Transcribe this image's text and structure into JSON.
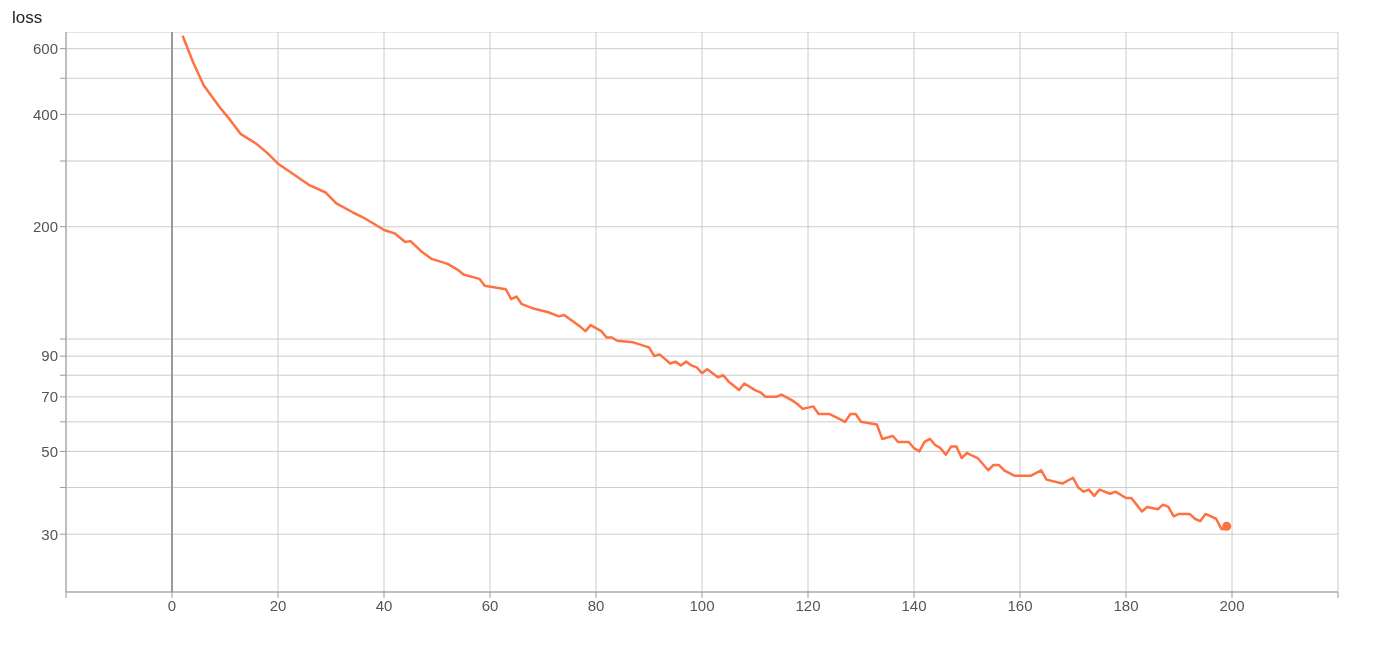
{
  "chart_data": {
    "type": "line",
    "title": "loss",
    "log": "y",
    "grid": true,
    "legend": false,
    "marker": "none",
    "line_style": "solid",
    "xlim": [
      -20,
      220
    ],
    "xticks": [
      {
        "value": -20,
        "label": null
      },
      0,
      20,
      40,
      60,
      80,
      100,
      120,
      140,
      160,
      180,
      200,
      {
        "value": 220,
        "label": null
      }
    ],
    "ylim": [
      21,
      665
    ],
    "yticks": [
      30,
      {
        "value": 40,
        "label": null
      },
      50,
      {
        "value": 60,
        "label": null
      },
      70,
      {
        "value": 80,
        "label": null
      },
      90,
      {
        "value": 100,
        "label": null
      },
      200,
      {
        "value": 300,
        "label": null
      },
      400,
      {
        "value": 500,
        "label": null
      },
      600
    ],
    "ref_lines": [
      {
        "axis": "x",
        "value": 0,
        "color": "#999999"
      }
    ],
    "series": [
      {
        "color": "#ff7043",
        "x": [
          2,
          4,
          6,
          9,
          11,
          13,
          16,
          18,
          20,
          23,
          26,
          29,
          31,
          34,
          36,
          38,
          40,
          42,
          44,
          45,
          47,
          49,
          52,
          54,
          55,
          58,
          59,
          63,
          64,
          65,
          66,
          68,
          71,
          73,
          74,
          77,
          78,
          79,
          81,
          82,
          83,
          84,
          87,
          90,
          91,
          92,
          94,
          95,
          96,
          97,
          98,
          99,
          100,
          101,
          103,
          104,
          105,
          107,
          108,
          110,
          111,
          112,
          114,
          115,
          117,
          118,
          119,
          121,
          122,
          124,
          126,
          127,
          128,
          129,
          130,
          133,
          134,
          136,
          137,
          139,
          140,
          141,
          142,
          143,
          144,
          145,
          146,
          147,
          148,
          149,
          150,
          152,
          154,
          155,
          156,
          157,
          159,
          160,
          162,
          164,
          165,
          168,
          170,
          171,
          172,
          173,
          174,
          175,
          177,
          178,
          180,
          181,
          182,
          183,
          184,
          186,
          187,
          188,
          189,
          190,
          192,
          193,
          194,
          195,
          197,
          198,
          199
        ],
        "values": [
          650,
          551,
          478,
          418,
          386,
          354,
          333,
          315,
          295,
          276,
          258,
          247,
          231,
          219,
          212,
          204,
          196,
          192,
          182,
          183,
          172,
          164,
          159,
          153,
          149,
          145,
          139,
          136,
          128,
          130,
          124,
          121,
          118,
          115,
          116,
          108,
          105,
          109,
          105,
          101,
          101,
          99,
          98,
          95,
          90,
          91,
          86,
          87,
          85,
          87,
          85,
          84,
          81,
          83,
          79,
          80,
          77,
          73,
          76,
          73,
          72,
          70,
          70,
          71,
          68.5,
          67,
          65,
          66,
          63,
          63,
          61,
          60,
          63,
          63,
          60,
          59,
          54,
          55,
          53,
          53,
          51,
          50,
          53,
          54,
          52,
          51,
          49,
          51.5,
          51.5,
          48,
          49.5,
          48,
          44.5,
          46,
          46,
          44.5,
          43,
          43,
          43,
          44.5,
          42,
          41,
          42.5,
          40,
          39,
          39.5,
          38,
          39.5,
          38.5,
          39,
          37.5,
          37.5,
          36,
          34.5,
          35.5,
          35,
          36,
          35.5,
          33.5,
          34,
          34,
          33,
          32.5,
          34,
          33,
          31,
          31
        ]
      },
      {
        "type": "scatter",
        "color": "#ff7043",
        "marker": "circle",
        "x": [
          199
        ],
        "values": [
          31.5
        ]
      }
    ]
  }
}
